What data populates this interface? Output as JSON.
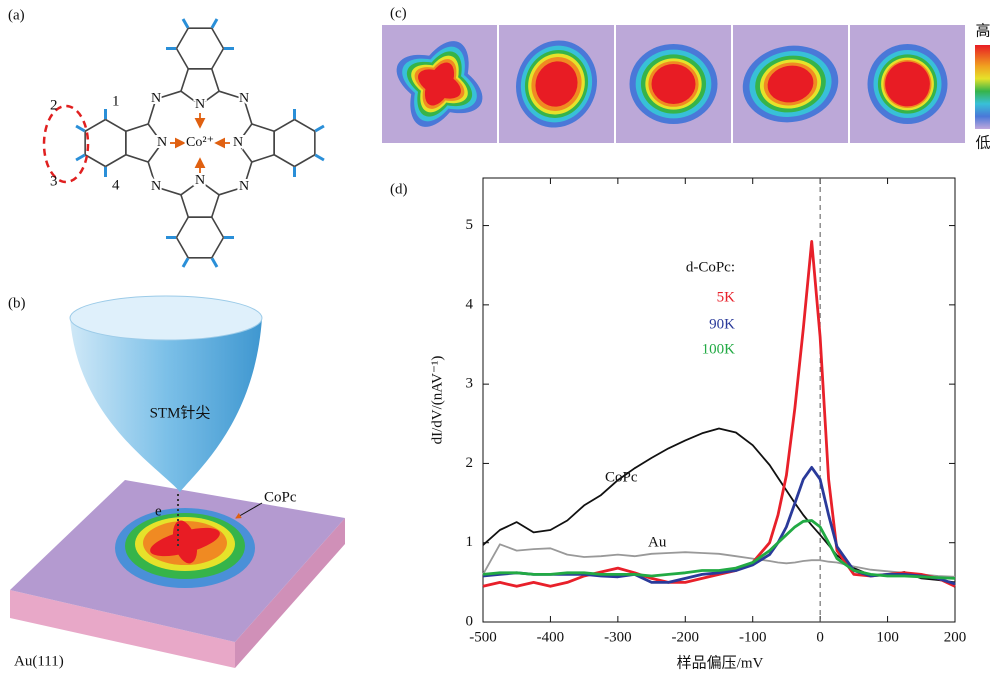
{
  "panel_labels": [
    "(a)",
    "(b)",
    "(c)",
    "(d)"
  ],
  "panel_a": {
    "atoms": [
      "N",
      "N",
      "N",
      "N",
      "N",
      "N",
      "N",
      "N",
      "Co²⁺"
    ],
    "positions": [
      "1",
      "2",
      "3",
      "4"
    ]
  },
  "panel_b": {
    "tip_label": "STM针尖",
    "molecule_label": "CoPc",
    "electron_label": "e",
    "substrate_label": "Au(111)"
  },
  "panel_c": {
    "colorbar_high": "高",
    "colorbar_low": "低"
  },
  "chart_data": {
    "type": "line",
    "x_label": "样品偏压/mV",
    "y_label": "dI/dV/(nAV⁻¹)",
    "legend_title": "d-CoPc:",
    "x": [
      -500,
      -475,
      -450,
      -425,
      -400,
      -375,
      -350,
      -325,
      -300,
      -275,
      -250,
      -225,
      -200,
      -175,
      -150,
      -125,
      -100,
      -75,
      -62.5,
      -50,
      -37.5,
      -25,
      -12.5,
      0,
      12.5,
      25,
      50,
      75,
      100,
      125,
      150,
      175,
      200
    ],
    "series": [
      {
        "name": "CoPc",
        "color": "#111111",
        "values": [
          0.97,
          1.16,
          1.26,
          1.13,
          1.16,
          1.28,
          1.47,
          1.6,
          1.79,
          1.94,
          2.07,
          2.19,
          2.29,
          2.38,
          2.44,
          2.39,
          2.23,
          1.98,
          1.82,
          1.66,
          1.5,
          1.35,
          1.22,
          1.1,
          0.97,
          0.84,
          0.68,
          0.59,
          0.6,
          0.63,
          0.55,
          0.53,
          0.5
        ]
      },
      {
        "name": "Au",
        "color": "#999999",
        "values": [
          0.6,
          0.98,
          0.9,
          0.92,
          0.93,
          0.85,
          0.82,
          0.83,
          0.85,
          0.83,
          0.86,
          0.87,
          0.88,
          0.87,
          0.86,
          0.83,
          0.8,
          0.77,
          0.75,
          0.74,
          0.75,
          0.77,
          0.78,
          0.78,
          0.76,
          0.75,
          0.7,
          0.66,
          0.64,
          0.62,
          0.6,
          0.58,
          0.57
        ]
      },
      {
        "name": "5K",
        "color": "#e8202a",
        "values": [
          0.45,
          0.5,
          0.45,
          0.5,
          0.45,
          0.5,
          0.58,
          0.63,
          0.68,
          0.62,
          0.55,
          0.5,
          0.5,
          0.55,
          0.6,
          0.65,
          0.75,
          1.0,
          1.35,
          1.85,
          2.7,
          3.7,
          4.8,
          3.6,
          1.8,
          0.9,
          0.6,
          0.58,
          0.6,
          0.62,
          0.6,
          0.55,
          0.45
        ]
      },
      {
        "name": "90K",
        "color": "#2a3a9a",
        "values": [
          0.58,
          0.6,
          0.62,
          0.6,
          0.6,
          0.6,
          0.6,
          0.58,
          0.57,
          0.6,
          0.5,
          0.5,
          0.55,
          0.6,
          0.62,
          0.65,
          0.72,
          0.85,
          1.0,
          1.2,
          1.5,
          1.8,
          1.95,
          1.8,
          1.35,
          0.95,
          0.65,
          0.58,
          0.6,
          0.6,
          0.58,
          0.55,
          0.48
        ]
      },
      {
        "name": "100K",
        "color": "#22aa44",
        "values": [
          0.6,
          0.62,
          0.62,
          0.6,
          0.6,
          0.62,
          0.62,
          0.6,
          0.6,
          0.6,
          0.58,
          0.6,
          0.62,
          0.65,
          0.65,
          0.68,
          0.75,
          0.9,
          1.0,
          1.1,
          1.2,
          1.27,
          1.28,
          1.2,
          1.0,
          0.8,
          0.65,
          0.6,
          0.58,
          0.58,
          0.57,
          0.56,
          0.55
        ]
      }
    ],
    "xlim": [
      -500,
      200
    ],
    "ylim": [
      0,
      5.6
    ],
    "xticks": [
      -500,
      -400,
      -300,
      -200,
      -100,
      0,
      100,
      200
    ],
    "yticks": [
      0,
      1,
      2,
      3,
      4,
      5
    ],
    "reference_line_x": 0
  }
}
